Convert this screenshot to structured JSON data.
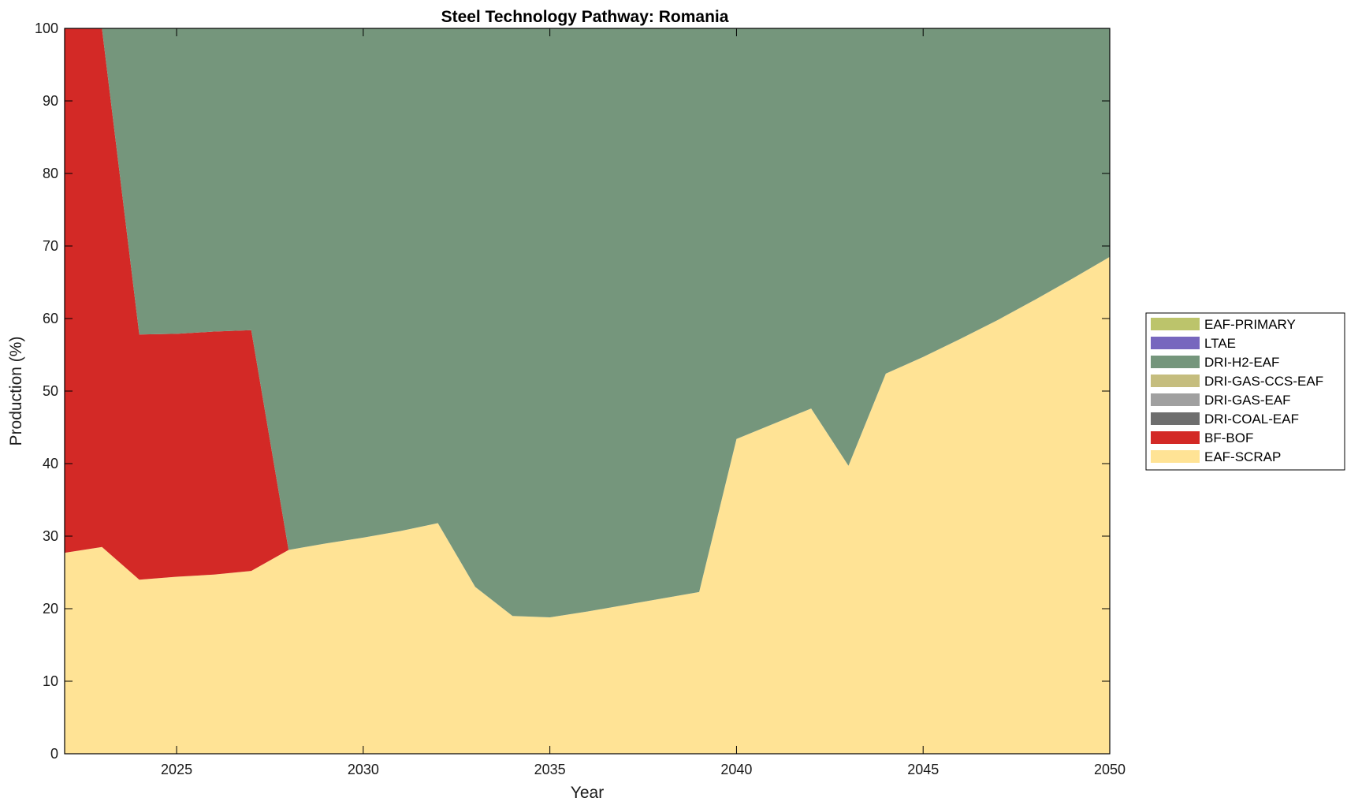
{
  "chart_data": {
    "type": "area",
    "stacked": true,
    "title": "Steel Technology Pathway: Romania",
    "xlabel": "Year",
    "ylabel": "Production (%)",
    "xlim": [
      2022,
      2050
    ],
    "ylim": [
      0,
      100
    ],
    "xticks": [
      2025,
      2030,
      2035,
      2040,
      2045,
      2050
    ],
    "yticks": [
      0,
      10,
      20,
      30,
      40,
      50,
      60,
      70,
      80,
      90,
      100
    ],
    "grid": false,
    "legend_position": "right",
    "x": [
      2022,
      2023,
      2024,
      2025,
      2026,
      2027,
      2028,
      2029,
      2030,
      2031,
      2032,
      2033,
      2034,
      2035,
      2036,
      2037,
      2038,
      2039,
      2040,
      2041,
      2042,
      2043,
      2044,
      2045,
      2046,
      2047,
      2048,
      2049,
      2050
    ],
    "series": [
      {
        "name": "EAF-SCRAP",
        "color": "#FFE395",
        "values": [
          27.7,
          28.5,
          24.0,
          24.4,
          24.7,
          25.2,
          28.1,
          29.0,
          29.8,
          30.7,
          31.8,
          23.0,
          19.0,
          18.8,
          19.6,
          20.5,
          21.4,
          22.3,
          43.4,
          45.5,
          47.6,
          39.7,
          52.4,
          54.7,
          57.2,
          59.8,
          62.6,
          65.5,
          68.5
        ]
      },
      {
        "name": "BF-BOF",
        "color": "#D32926",
        "values": [
          72.3,
          71.5,
          33.8,
          33.5,
          33.5,
          33.2,
          0,
          0,
          0,
          0,
          0,
          0,
          0,
          0,
          0,
          0,
          0,
          0,
          0,
          0,
          0,
          0,
          0,
          0,
          0,
          0,
          0,
          0,
          0
        ]
      },
      {
        "name": "DRI-COAL-EAF",
        "color": "#6E6E6E",
        "values": [
          0,
          0,
          0,
          0,
          0,
          0,
          0,
          0,
          0,
          0,
          0,
          0,
          0,
          0,
          0,
          0,
          0,
          0,
          0,
          0,
          0,
          0,
          0,
          0,
          0,
          0,
          0,
          0,
          0
        ]
      },
      {
        "name": "DRI-GAS-EAF",
        "color": "#A0A0A0",
        "values": [
          0,
          0,
          0,
          0,
          0,
          0,
          0,
          0,
          0,
          0,
          0,
          0,
          0,
          0,
          0,
          0,
          0,
          0,
          0,
          0,
          0,
          0,
          0,
          0,
          0,
          0,
          0,
          0,
          0
        ]
      },
      {
        "name": "DRI-GAS-CCS-EAF",
        "color": "#C5BD7E",
        "values": [
          0,
          0,
          0,
          0,
          0,
          0,
          0,
          0,
          0,
          0,
          0,
          0,
          0,
          0,
          0,
          0,
          0,
          0,
          0,
          0,
          0,
          0,
          0,
          0,
          0,
          0,
          0,
          0,
          0
        ]
      },
      {
        "name": "DRI-H2-EAF",
        "color": "#75967C",
        "values": [
          0,
          0,
          42.2,
          42.1,
          41.8,
          41.6,
          71.9,
          71.0,
          70.2,
          69.3,
          68.2,
          77.0,
          81.0,
          81.2,
          80.4,
          79.5,
          78.6,
          77.7,
          56.6,
          54.5,
          52.4,
          60.3,
          47.6,
          45.3,
          42.8,
          40.2,
          37.4,
          34.5,
          31.5
        ]
      },
      {
        "name": "LTAE",
        "color": "#7767BE",
        "values": [
          0,
          0,
          0,
          0,
          0,
          0,
          0,
          0,
          0,
          0,
          0,
          0,
          0,
          0,
          0,
          0,
          0,
          0,
          0,
          0,
          0,
          0,
          0,
          0,
          0,
          0,
          0,
          0,
          0
        ]
      },
      {
        "name": "EAF-PRIMARY",
        "color": "#BCC46B",
        "values": [
          0,
          0,
          0,
          0,
          0,
          0,
          0,
          0,
          0,
          0,
          0,
          0,
          0,
          0,
          0,
          0,
          0,
          0,
          0,
          0,
          0,
          0,
          0,
          0,
          0,
          0,
          0,
          0,
          0
        ]
      }
    ],
    "legend_order": [
      "EAF-PRIMARY",
      "LTAE",
      "DRI-H2-EAF",
      "DRI-GAS-CCS-EAF",
      "DRI-GAS-EAF",
      "DRI-COAL-EAF",
      "BF-BOF",
      "EAF-SCRAP"
    ]
  }
}
